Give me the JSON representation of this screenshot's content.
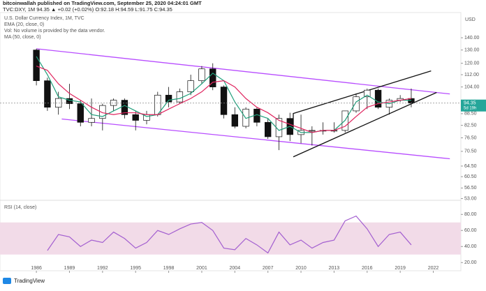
{
  "header": {
    "publisher": "bitcoinwallah published on TradingView.com, September 25, 2020 04:24:01 GMT",
    "quote": "TVC:DXY, 1M  94.35  ▲ +0.02 (+0.02%)  O:92.18  H:94.59  L:91.75  C:94.35"
  },
  "footer": "TradingView",
  "chart_data": [
    {
      "type": "candlestick",
      "title": "U.S. Dollar Currency Index, 1M, TVC",
      "legend": [
        "EMA (20, close, 0)",
        "Vol: No volume is provided by the data vendor.",
        "MA (50, close, 0)"
      ],
      "y_axis_title": "USD",
      "log_scale": true,
      "x": [
        1986,
        1987,
        1988,
        1989,
        1990,
        1991,
        1992,
        1993,
        1994,
        1995,
        1996,
        1997,
        1998,
        1999,
        2000,
        2001,
        2002,
        2003,
        2004,
        2005,
        2006,
        2007,
        2008,
        2009,
        2010,
        2011,
        2012,
        2013,
        2014,
        2015,
        2016,
        2017,
        2018,
        2019,
        2020
      ],
      "open": [
        130,
        108,
        92,
        97,
        94,
        84,
        86,
        93,
        96,
        88,
        85,
        88,
        99,
        95,
        101,
        108,
        116,
        104,
        88,
        82,
        91,
        84,
        77,
        86,
        78,
        80,
        80,
        80,
        80,
        90,
        98,
        102,
        92,
        96,
        97
      ],
      "high": [
        131,
        110,
        101,
        106,
        96,
        97,
        94,
        97,
        97,
        90,
        90,
        101,
        104,
        103,
        112,
        118,
        120,
        105,
        92,
        92,
        92,
        86,
        88,
        89,
        88,
        82,
        84,
        84,
        90,
        100,
        103,
        103,
        97,
        99,
        103
      ],
      "low": [
        105,
        90,
        88,
        91,
        82,
        82,
        80,
        90,
        86,
        80,
        83,
        87,
        92,
        94,
        99,
        106,
        102,
        86,
        81,
        81,
        82,
        76,
        71,
        75,
        74,
        73,
        78,
        79,
        79,
        89,
        91,
        91,
        88,
        95,
        92
      ],
      "close": [
        108,
        92,
        97,
        94,
        84,
        86,
        93,
        96,
        88,
        85,
        88,
        99,
        95,
        101,
        108,
        116,
        104,
        88,
        82,
        91,
        84,
        77,
        86,
        78,
        80,
        80,
        80,
        80,
        90,
        98,
        102,
        92,
        96,
        97,
        94.35
      ],
      "up_color": "#ffffff",
      "down_color": "#111111",
      "series": [
        {
          "name": "EMA (20, close, 0)",
          "color": "#1f9e7a",
          "values": [
            125,
            112,
            98,
            96,
            95,
            88,
            87,
            90,
            93,
            90,
            87,
            88,
            96,
            97,
            100,
            106,
            113,
            108,
            95,
            86,
            88,
            86,
            80,
            82,
            79,
            79,
            80,
            80,
            85,
            95,
            99,
            95,
            94,
            96,
            96
          ]
        },
        {
          "name": "MA (50, close, 0)",
          "color": "#e0245e",
          "values": [
            118,
            115,
            106,
            100,
            96,
            92,
            89,
            88,
            89,
            89,
            88,
            88,
            91,
            94,
            97,
            101,
            107,
            108,
            104,
            97,
            92,
            89,
            85,
            83,
            81,
            79,
            80,
            80,
            82,
            87,
            92,
            94,
            95,
            96,
            97
          ]
        }
      ],
      "trendlines": [
        {
          "color": "#b84dff",
          "points": [
            [
              1986,
              131
            ],
            [
              2023.5,
              99.7
            ]
          ]
        },
        {
          "color": "#b84dff",
          "points": [
            [
              1988.3,
              85.7
            ],
            [
              2023.5,
              67.4
            ]
          ]
        },
        {
          "color": "#111111",
          "points": [
            [
              2009.3,
              80.7
            ],
            [
              2009.3,
              88.6
            ],
            [
              2021.8,
              114.6
            ]
          ]
        },
        {
          "color": "#111111",
          "points": [
            [
              2009.3,
              68.2
            ],
            [
              2022.3,
              100.6
            ]
          ]
        }
      ],
      "last_price_label": "94.35",
      "countdown": "5d 19h",
      "xlim": [
        1982.7,
        2024.5
      ],
      "xticks": [
        1986,
        1989,
        1992,
        1995,
        1998,
        2001,
        2004,
        2007,
        2010,
        2013,
        2016,
        2019,
        2022
      ],
      "ylim": [
        52.9,
        163
      ],
      "yticks": [
        {
          "value": 140,
          "label": "140.00"
        },
        {
          "value": 130,
          "label": "130.00"
        },
        {
          "value": 120,
          "label": "120.00"
        },
        {
          "value": 112,
          "label": "112.00"
        },
        {
          "value": 104,
          "label": "104.00"
        },
        {
          "value": 88.5,
          "label": "88.50"
        },
        {
          "value": 82.5,
          "label": "82.50"
        },
        {
          "value": 76.5,
          "label": "76.50"
        },
        {
          "value": 70.5,
          "label": "70.50"
        },
        {
          "value": 64.5,
          "label": "64.50"
        },
        {
          "value": 60.5,
          "label": "60.50"
        },
        {
          "value": 56.5,
          "label": "56.50"
        },
        {
          "value": 53,
          "label": "53.00"
        }
      ]
    },
    {
      "type": "line",
      "title": "RSI (14, close)",
      "x": [
        1986,
        1987,
        1988,
        1989,
        1990,
        1991,
        1992,
        1993,
        1994,
        1995,
        1996,
        1997,
        1998,
        1999,
        2000,
        2001,
        2002,
        2003,
        2004,
        2005,
        2006,
        2007,
        2008,
        2009,
        2010,
        2011,
        2012,
        2013,
        2014,
        2015,
        2016,
        2017,
        2018,
        2019,
        2020
      ],
      "series": [
        {
          "name": "RSI",
          "color": "#a35fd0",
          "values": [
            null,
            35,
            55,
            52,
            40,
            48,
            45,
            58,
            50,
            38,
            45,
            60,
            55,
            62,
            68,
            70,
            60,
            38,
            36,
            50,
            42,
            32,
            58,
            42,
            48,
            38,
            45,
            48,
            72,
            78,
            62,
            40,
            55,
            58,
            42
          ]
        }
      ],
      "band": [
        30,
        70
      ],
      "band_color": "#f2dbe8",
      "xlim": [
        1982.7,
        2024.5
      ],
      "ylim": [
        15,
        95
      ],
      "yticks": [
        {
          "value": 20,
          "label": "20.00"
        },
        {
          "value": 40,
          "label": "40.00"
        },
        {
          "value": 60,
          "label": "60.00"
        },
        {
          "value": 80,
          "label": "80.00"
        }
      ]
    }
  ]
}
